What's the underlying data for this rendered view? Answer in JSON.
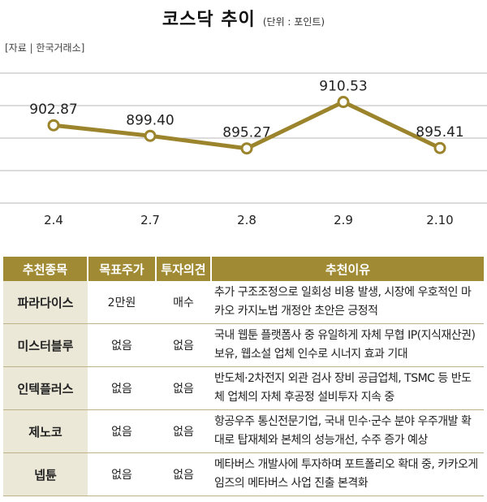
{
  "header": {
    "title": "코스닥 추이",
    "unit": "(단위 : 포인트)",
    "source": "[자료 | 한국거래소]"
  },
  "chart_data": {
    "type": "line",
    "title": "코스닥 추이",
    "categories": [
      "2.4",
      "2.7",
      "2.8",
      "2.9",
      "2.10"
    ],
    "series": [
      {
        "values": [
          902.87,
          899.4,
          895.27,
          910.53,
          895.41
        ],
        "labels": [
          "902.87",
          "899.40",
          "895.27",
          "910.53",
          "895.41"
        ]
      }
    ],
    "ylim": [
      880,
      920
    ],
    "grid": true,
    "line_color": "#9b842c"
  },
  "table": {
    "headers": [
      "추천종목",
      "목표주가",
      "투자의견",
      "추천이유"
    ],
    "rows": [
      [
        "파라다이스",
        "2만원",
        "매수",
        "추가 구조조정으로 일회성 비용 발생, 시장에 우호적인 마카오 카지노법 개정안 초안은 긍정적"
      ],
      [
        "미스터블루",
        "없음",
        "없음",
        "국내 웹툰 플랫폼사 중 유일하게 자체 무협 IP(지식재산권) 보유, 웹소설 업체 인수로 시너지 효과 기대"
      ],
      [
        "인텍플러스",
        "없음",
        "없음",
        "반도체·2차전지 외관 검사 장비 공급업체, TSMC 등 반도체 업체의 자체 후공정 설비투자 지속 중"
      ],
      [
        "제노코",
        "없음",
        "없음",
        "항공우주 통신전문기업, 국내 민수·군수 분야 우주개발 확대로 탑재체와 본체의 성능개선, 수주 증가 예상"
      ],
      [
        "넵튠",
        "없음",
        "없음",
        "메타버스 개발사에 투자하며 포트폴리오 확대 중, 카카오게임즈의 메타버스 사업 진출 본격화"
      ]
    ]
  },
  "colors": {
    "header_bg": "#a08a33",
    "stock_bg": "#ece8d8",
    "grid": "#b9b9b9"
  }
}
